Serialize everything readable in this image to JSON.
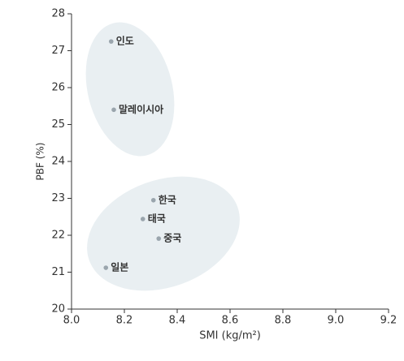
{
  "chart_data": {
    "type": "scatter",
    "xlabel": "SMI (kg/m²)",
    "ylabel": "PBF (%)",
    "labels": [
      "인도",
      "말레이시아",
      "한국",
      "태국",
      "중국",
      "일본"
    ],
    "x": [
      8.15,
      8.16,
      8.31,
      8.27,
      8.33,
      8.13
    ],
    "values": [
      27.25,
      25.4,
      22.95,
      22.44,
      21.91,
      21.12
    ],
    "color": "#9aa5ad",
    "xlim": [
      8.0,
      9.2
    ],
    "xticks": [
      {
        "value": 8,
        "label": "8.0"
      },
      8.2,
      8.4,
      8.6,
      8.8,
      {
        "value": 9,
        "label": "9.0"
      },
      9.2
    ],
    "ylim": [
      20,
      28
    ],
    "yticks": [
      20,
      21,
      22,
      23,
      24,
      25,
      26,
      27,
      28
    ]
  }
}
